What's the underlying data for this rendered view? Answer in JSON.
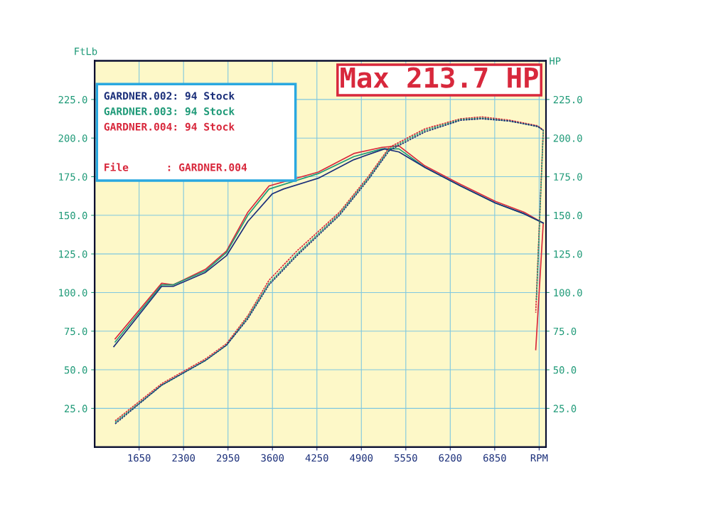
{
  "chart_data": {
    "type": "line",
    "title": "Max 213.7 HP",
    "ylabel": "FtLb",
    "y2label": "HP",
    "annotations": [
      "File      : GARDNER.004"
    ],
    "xlim": [
      1000,
      7600
    ],
    "xticks": [
      1650,
      2300,
      2950,
      3600,
      4250,
      4900,
      5550,
      6200,
      6850,
      {
        "value": 7500,
        "label": "RPM"
      }
    ],
    "ylim": [
      0,
      250
    ],
    "yticks": [
      {
        "value": 25,
        "label": "25.0"
      },
      {
        "value": 50,
        "label": "50.0"
      },
      {
        "value": 75,
        "label": "75.0"
      },
      {
        "value": 100,
        "label": "100.0"
      },
      {
        "value": 125,
        "label": "125.0"
      },
      {
        "value": 150,
        "label": "150.0"
      },
      {
        "value": 175,
        "label": "175.0"
      },
      {
        "value": 200,
        "label": "200.0"
      },
      {
        "value": 225,
        "label": "225.0"
      }
    ],
    "y2lim": [
      0,
      250
    ],
    "y2ticks": [
      {
        "value": 25,
        "label": "25.0"
      },
      {
        "value": 50,
        "label": "50.0"
      },
      {
        "value": 75,
        "label": "75.0"
      },
      {
        "value": 100,
        "label": "100.0"
      },
      {
        "value": 125,
        "label": "125.0"
      },
      {
        "value": 150,
        "label": "150.0"
      },
      {
        "value": 175,
        "label": "175.0"
      },
      {
        "value": 200,
        "label": "200.0"
      },
      {
        "value": 225,
        "label": "225.0"
      }
    ],
    "grid": true,
    "legend": "top left",
    "series": [
      {
        "name": "GARDNER.002: 94 Stock",
        "color": "#1b2f7a",
        "line_style": "solid",
        "x": [
          1280,
          1980,
          2150,
          2620,
          2930,
          3240,
          3600,
          3760,
          4270,
          4790,
          5240,
          5450,
          5830,
          6350,
          6860,
          7280,
          7560
        ],
        "values": [
          65,
          104,
          104,
          113,
          124,
          146,
          164,
          167,
          174,
          186,
          193,
          191,
          181,
          169,
          158,
          151,
          145
        ]
      },
      {
        "name": "GARDNER.003: 94 Stock",
        "color": "#1f9a78",
        "line_style": "solid",
        "x": [
          1300,
          1980,
          2150,
          2620,
          2930,
          3240,
          3550,
          4270,
          4790,
          5200,
          5450,
          5830,
          6350,
          6860,
          7280,
          7560
        ],
        "values": [
          68,
          105,
          105,
          114,
          126,
          150,
          167,
          177,
          188,
          193,
          193,
          181,
          169,
          158,
          151,
          145
        ]
      },
      {
        "name": "GARDNER.004: 94 Stock",
        "color": "#d8283c",
        "line_style": "solid",
        "x": [
          1300,
          1980,
          2150,
          2620,
          2930,
          3240,
          3550,
          4270,
          4790,
          5200,
          5450,
          5830,
          6350,
          6860,
          7280,
          7560,
          7450
        ],
        "values": [
          70,
          106,
          105,
          115,
          127,
          152,
          169,
          178,
          190,
          194,
          195,
          182,
          170,
          159,
          152,
          145,
          63
        ]
      },
      {
        "color": "#1b2f7a",
        "axis": "y2",
        "line_style": "dashed",
        "x": [
          1300,
          1980,
          2620,
          2930,
          3240,
          3550,
          3960,
          4580,
          5000,
          5310,
          5830,
          6350,
          6660,
          7070,
          7480,
          7560
        ],
        "values": [
          15,
          40,
          56,
          66,
          83,
          105,
          124,
          150,
          173,
          192,
          204,
          211.5,
          212.5,
          211,
          207.5,
          205
        ]
      },
      {
        "color": "#1f9a78",
        "axis": "y2",
        "line_style": "dashed",
        "x": [
          1300,
          1980,
          2620,
          2930,
          3240,
          3550,
          3960,
          4580,
          5000,
          5310,
          5830,
          6350,
          6660,
          7070,
          7480,
          7560,
          7460
        ],
        "values": [
          16,
          40,
          56,
          66,
          84,
          106,
          125,
          151,
          174,
          193,
          205,
          212,
          213,
          211,
          207.5,
          205,
          95
        ]
      },
      {
        "color": "#d8283c",
        "axis": "y2",
        "line_style": "dashed",
        "x": [
          1300,
          1980,
          2620,
          2930,
          3240,
          3550,
          3960,
          4580,
          5000,
          5310,
          5830,
          6350,
          6660,
          7070,
          7480,
          7560,
          7450
        ],
        "values": [
          17,
          41,
          57,
          67,
          85,
          108,
          127,
          152,
          175,
          194,
          206,
          212.5,
          213.7,
          211.6,
          208,
          205,
          87
        ]
      }
    ]
  }
}
